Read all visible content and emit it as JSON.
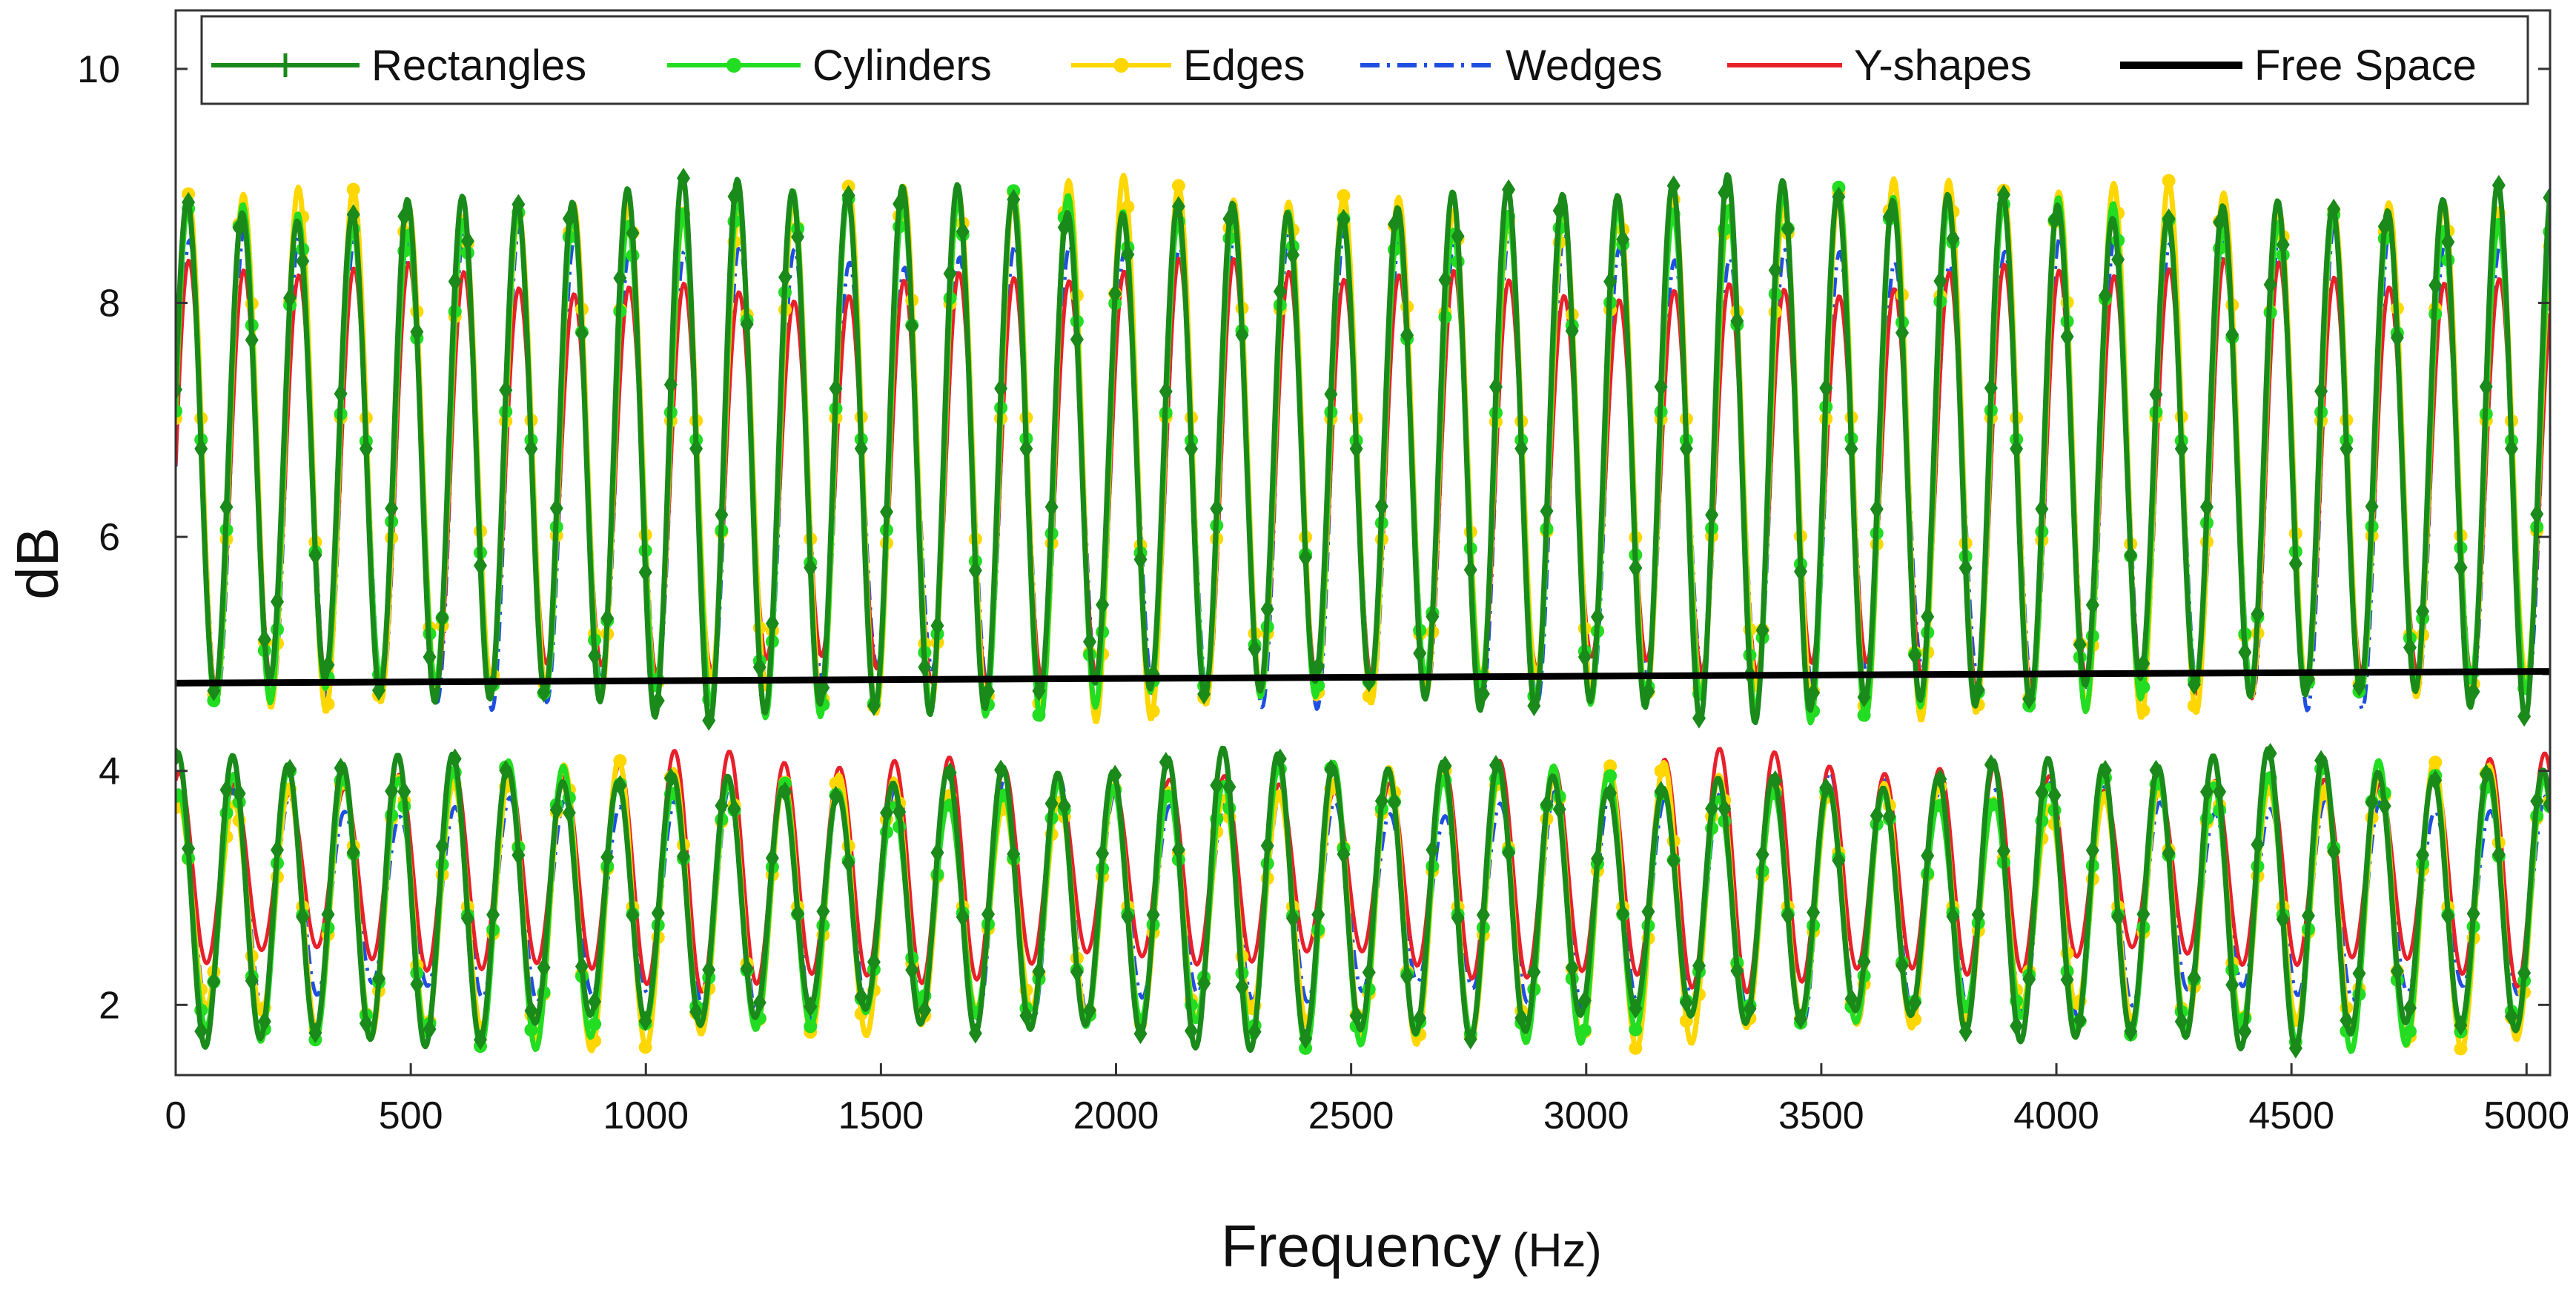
{
  "chart_data": {
    "type": "line",
    "title": "",
    "xlabel": "Frequency",
    "xlabel_unit": "(Hz)",
    "ylabel": "dB",
    "xlim": [
      0,
      5050
    ],
    "ylim": [
      1.4,
      10.5
    ],
    "xticks": [
      0,
      500,
      1000,
      1500,
      2000,
      2500,
      3000,
      3500,
      4000,
      4500,
      5000
    ],
    "yticks": [
      2,
      4,
      6,
      8,
      10
    ],
    "xtick_labels": [
      "0",
      "500",
      "1000",
      "1500",
      "2000",
      "2500",
      "3000",
      "3500",
      "4000",
      "4500",
      "5000"
    ],
    "ytick_labels": [
      "2",
      "4",
      "6",
      "8",
      "10"
    ],
    "legend_position": "top",
    "series": [
      {
        "name": "Rectangles",
        "color": "#1a8a1a",
        "style": "solid-plus-markers",
        "period_hz": 117,
        "upper_band": [
          4.6,
          8.9
        ],
        "lower_band": [
          1.8,
          4.0
        ]
      },
      {
        "name": "Cylinders",
        "color": "#22dd22",
        "style": "solid-dot-markers",
        "period_hz": 117,
        "upper_band": [
          4.6,
          8.8
        ],
        "lower_band": [
          1.8,
          3.9
        ]
      },
      {
        "name": "Edges",
        "color": "#ffd700",
        "style": "solid-dot-markers",
        "period_hz": 117,
        "upper_band": [
          4.6,
          8.9
        ],
        "lower_band": [
          1.8,
          3.9
        ]
      },
      {
        "name": "Wedges",
        "color": "#1f4fe0",
        "style": "dash-dot",
        "period_hz": 117,
        "upper_band": [
          4.7,
          8.5
        ],
        "lower_band": [
          2.0,
          3.8
        ]
      },
      {
        "name": "Y-shapes",
        "color": "#e8202a",
        "style": "solid",
        "period_hz": 117,
        "upper_band": [
          4.8,
          8.2
        ],
        "lower_band": [
          2.3,
          4.0
        ]
      },
      {
        "name": "Free Space",
        "color": "#000000",
        "style": "solid-thick",
        "x": [
          0,
          5050
        ],
        "y": [
          4.75,
          4.85
        ]
      }
    ]
  }
}
